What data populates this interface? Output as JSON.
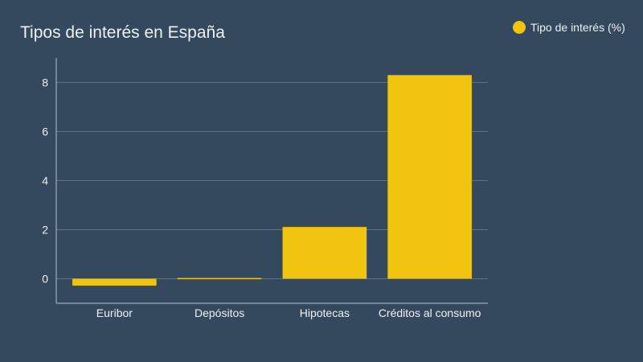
{
  "chart_data": {
    "type": "bar",
    "title": "Tipos de interés en España",
    "categories": [
      "Euribor",
      "Depósitos",
      "Hipotecas",
      "Créditos al consumo"
    ],
    "series": [
      {
        "name": "Tipo de interés (%)",
        "values": [
          -0.28,
          0.03,
          2.11,
          8.3
        ],
        "color": "#f1c40f"
      }
    ],
    "ylim": [
      -1,
      9
    ],
    "yticks": [
      0,
      2,
      4,
      6,
      8
    ],
    "xlabel": "",
    "ylabel": "",
    "grid": true,
    "legend_position": "top-right"
  },
  "colors": {
    "background": "#34495e",
    "text": "#eef1f4",
    "grid": "#5f7281",
    "axis": "#8a99a6"
  }
}
